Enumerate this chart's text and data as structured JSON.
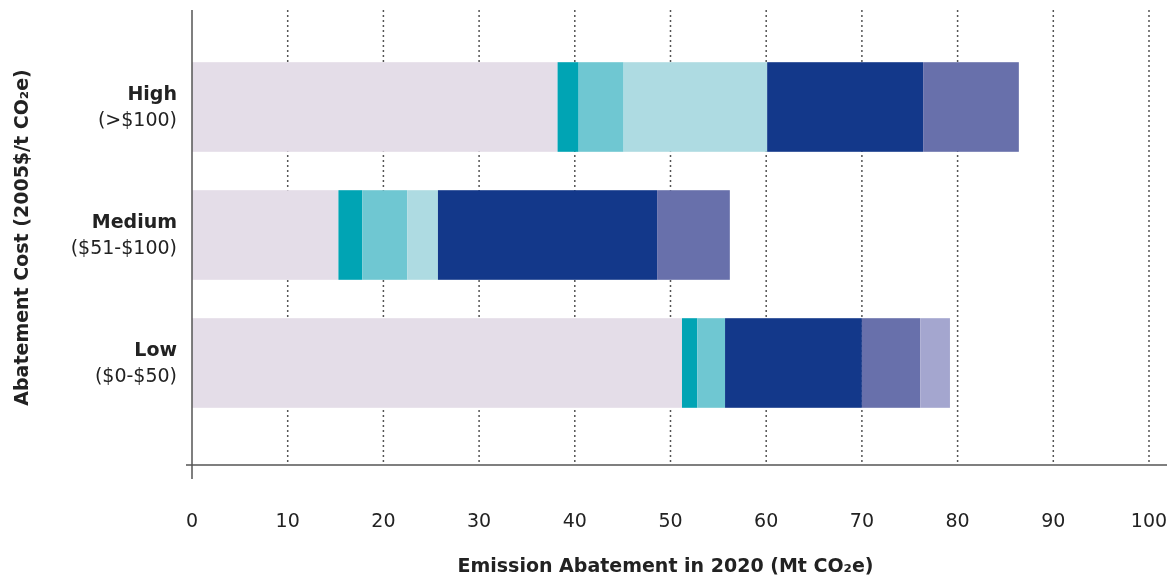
{
  "chart_data": {
    "type": "bar",
    "orientation": "horizontal",
    "stacked": true,
    "xlabel": "Emission Abatement in 2020 (Mt CO₂e)",
    "ylabel": "Abatement Cost (2005$/t CO₂e)",
    "categories": [
      "High\n(>$100)",
      "Medium\n($51-$100)",
      "Low\n($0-$50)"
    ],
    "series": [
      {
        "color": "#e4dde8",
        "values": [
          38.2,
          15.3,
          51.2
        ]
      },
      {
        "color": "#00a4b4",
        "values": [
          2.2,
          2.5,
          1.6
        ]
      },
      {
        "color": "#6fc7d2",
        "values": [
          4.7,
          4.7,
          2.9
        ]
      },
      {
        "color": "#aedbe2",
        "values": [
          15.0,
          3.2,
          0
        ]
      },
      {
        "color": "#13388a",
        "values": [
          16.3,
          22.9,
          14.3
        ]
      },
      {
        "color": "#6870ab",
        "values": [
          10.0,
          7.6,
          6.1
        ]
      },
      {
        "color": "#a4a6cf",
        "values": [
          0,
          0,
          3.1
        ]
      }
    ],
    "xlim": [
      0,
      100
    ],
    "xticks": [
      0,
      10,
      20,
      30,
      40,
      50,
      60,
      70,
      80,
      90,
      100
    ],
    "grid": "x"
  }
}
